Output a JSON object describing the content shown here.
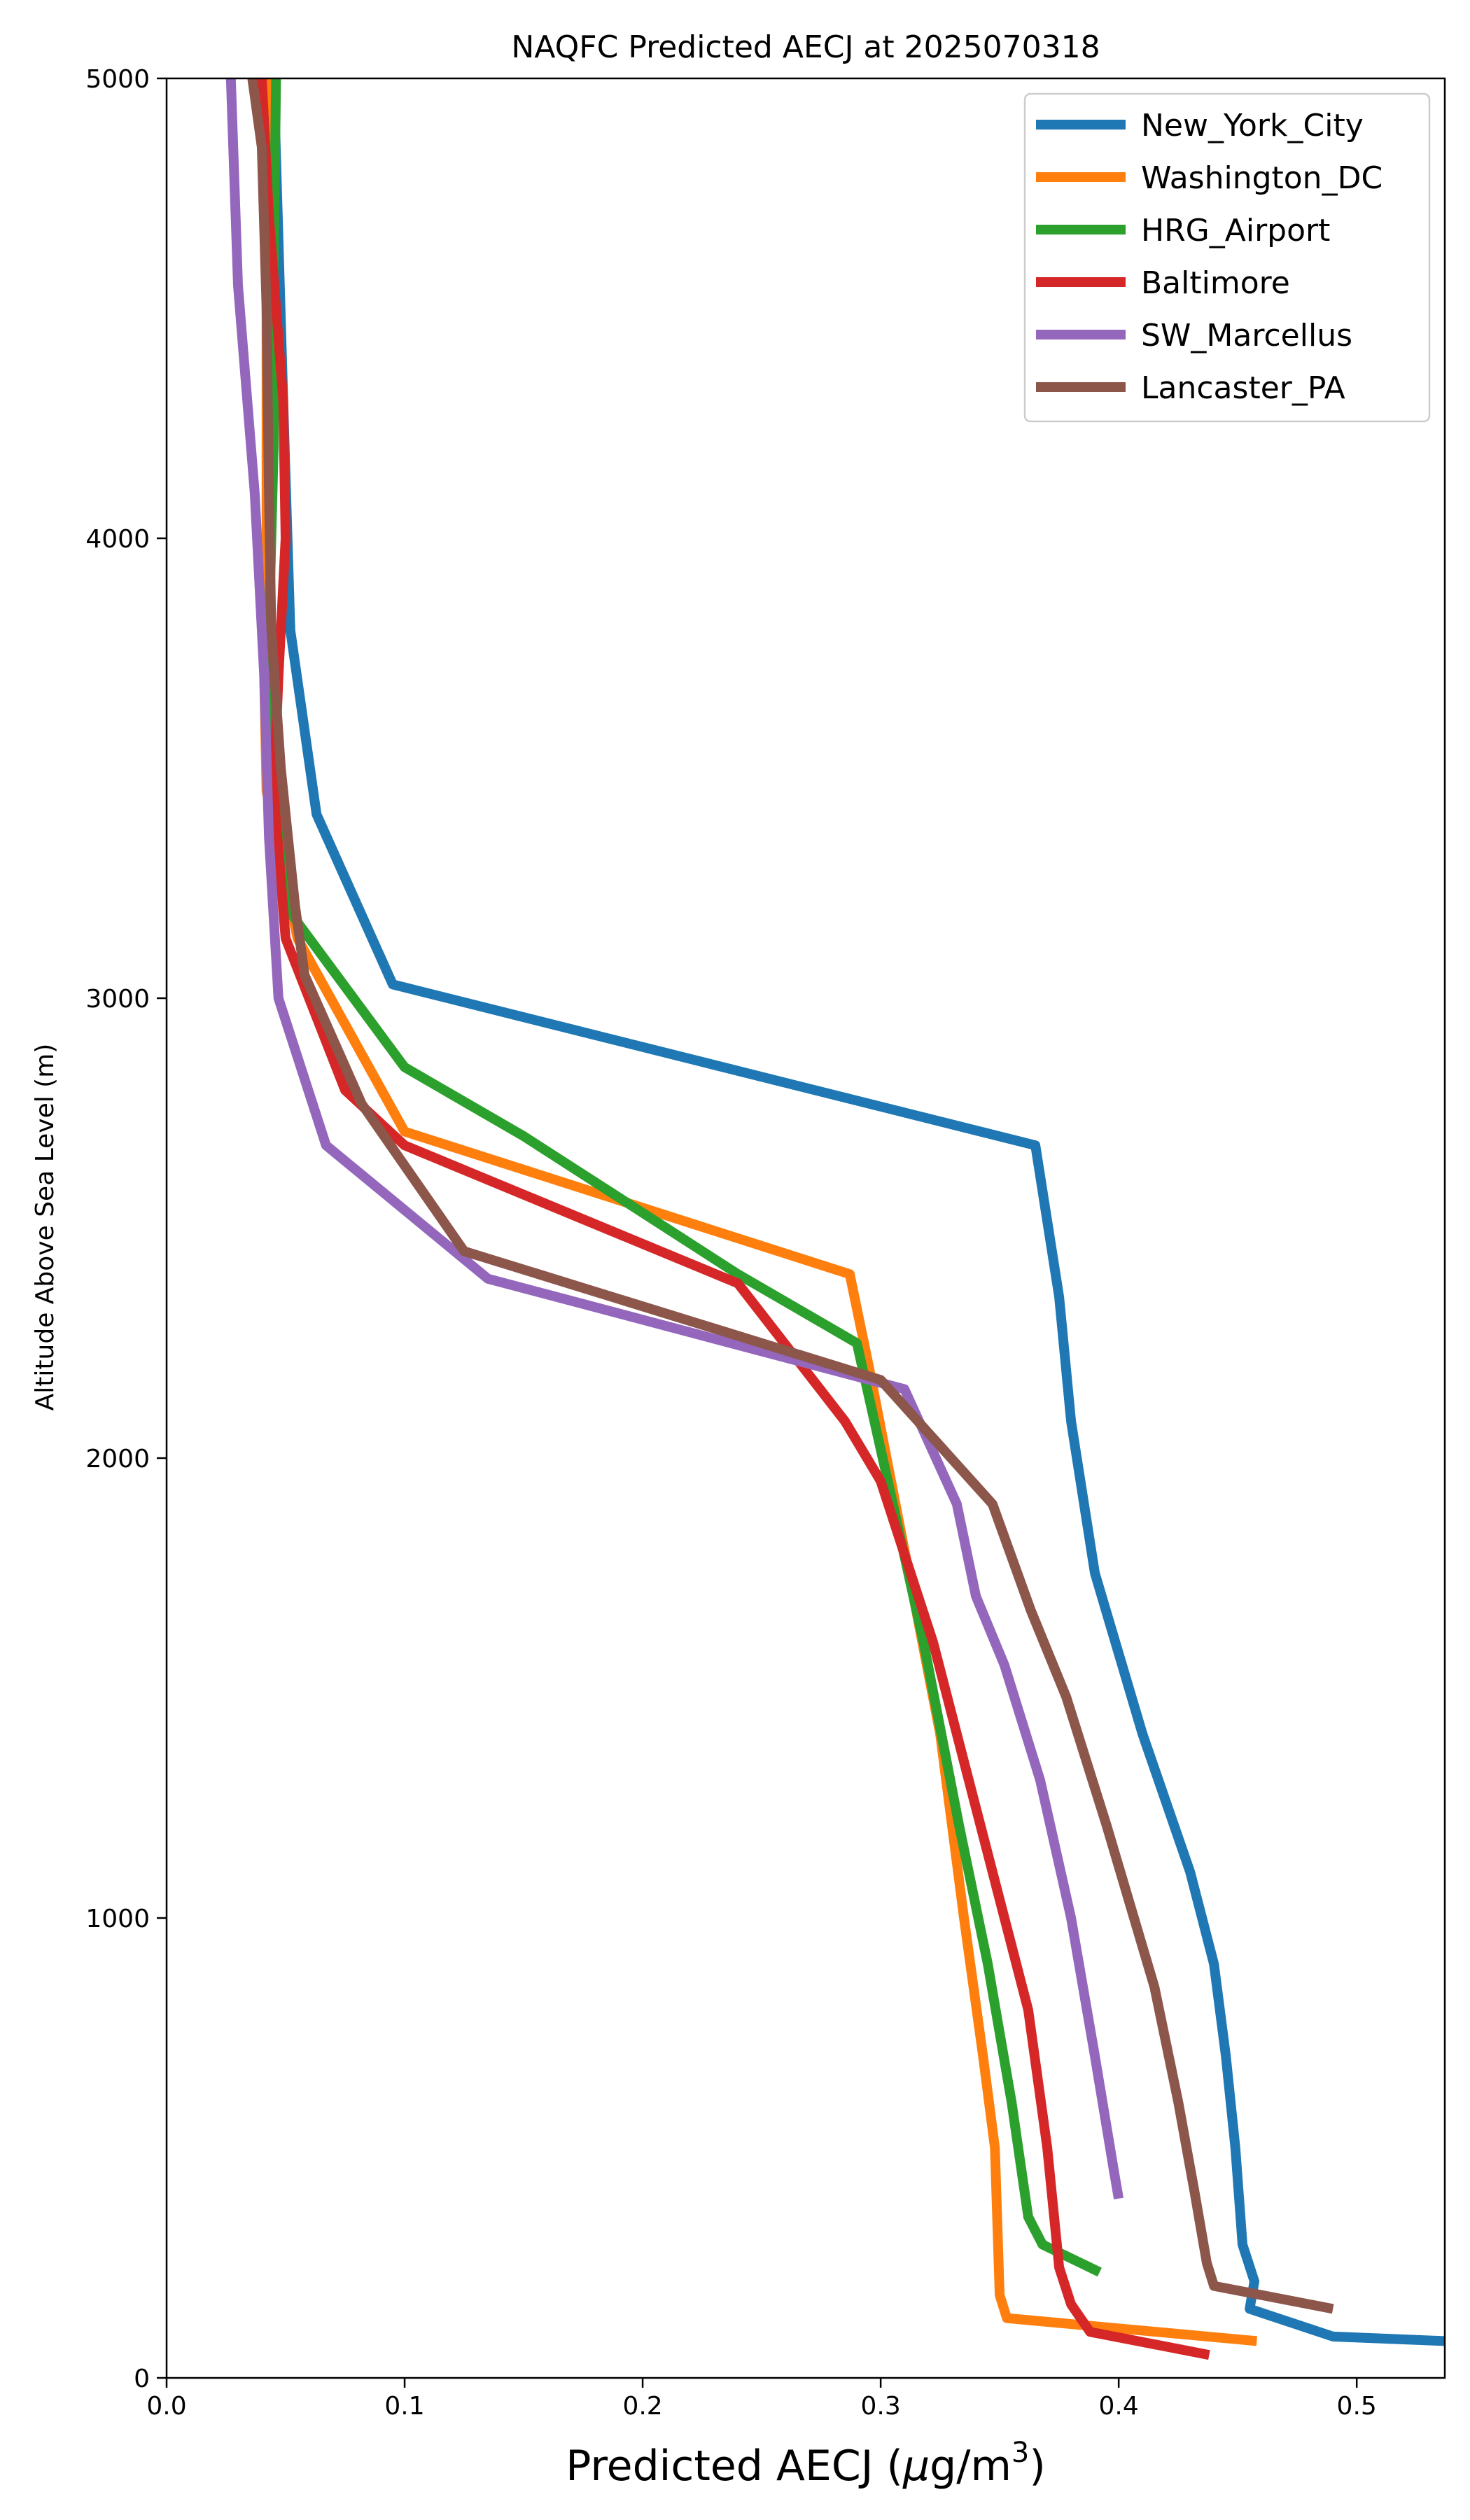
{
  "chart_data": {
    "type": "line",
    "title": "NAQFC Predicted AECJ at 2025070318",
    "xlabel": "Predicted AECJ (μg/m³)",
    "xlabel_parts": {
      "text": "Predicted AECJ (",
      "mu": "μ",
      "unit": "g/m",
      "sup": "3",
      "close": ")"
    },
    "ylabel": "Altitude Above Sea Level (m)",
    "xlim": [
      0.0,
      0.537
    ],
    "ylim": [
      0,
      5000
    ],
    "xticks": [
      "0.0",
      "0.1",
      "0.2",
      "0.3",
      "0.4",
      "0.5"
    ],
    "yticks": [
      "0",
      "1000",
      "2000",
      "3000",
      "4000",
      "5000"
    ],
    "grid": false,
    "legend_position": "top-right",
    "series": [
      {
        "name": "New_York_City",
        "color": "#1f77b4",
        "points": [
          [
            0.537,
            80
          ],
          [
            0.49,
            90
          ],
          [
            0.455,
            150
          ],
          [
            0.457,
            210
          ],
          [
            0.452,
            290
          ],
          [
            0.449,
            500
          ],
          [
            0.445,
            700
          ],
          [
            0.44,
            900
          ],
          [
            0.43,
            1100
          ],
          [
            0.41,
            1400
          ],
          [
            0.39,
            1750
          ],
          [
            0.38,
            2080
          ],
          [
            0.375,
            2350
          ],
          [
            0.365,
            2680
          ],
          [
            0.095,
            3030
          ],
          [
            0.063,
            3400
          ],
          [
            0.052,
            3800
          ],
          [
            0.049,
            4300
          ],
          [
            0.045,
            5000
          ]
        ]
      },
      {
        "name": "Washington_DC",
        "color": "#ff7f0e",
        "points": [
          [
            0.458,
            80
          ],
          [
            0.353,
            130
          ],
          [
            0.35,
            180
          ],
          [
            0.348,
            500
          ],
          [
            0.343,
            700
          ],
          [
            0.335,
            1000
          ],
          [
            0.325,
            1400
          ],
          [
            0.31,
            1800
          ],
          [
            0.295,
            2200
          ],
          [
            0.287,
            2400
          ],
          [
            0.1,
            2710
          ],
          [
            0.055,
            3130
          ],
          [
            0.042,
            3450
          ],
          [
            0.041,
            3700
          ],
          [
            0.042,
            4000
          ],
          [
            0.042,
            4500
          ],
          [
            0.043,
            5000
          ]
        ]
      },
      {
        "name": "HRG_Airport",
        "color": "#2ca02c",
        "points": [
          [
            0.392,
            230
          ],
          [
            0.368,
            290
          ],
          [
            0.362,
            350
          ],
          [
            0.355,
            600
          ],
          [
            0.345,
            900
          ],
          [
            0.333,
            1200
          ],
          [
            0.318,
            1600
          ],
          [
            0.303,
            1950
          ],
          [
            0.29,
            2250
          ],
          [
            0.24,
            2400
          ],
          [
            0.15,
            2700
          ],
          [
            0.1,
            2850
          ],
          [
            0.05,
            3200
          ],
          [
            0.044,
            3500
          ],
          [
            0.043,
            3800
          ],
          [
            0.045,
            4200
          ],
          [
            0.045,
            4600
          ],
          [
            0.046,
            5000
          ]
        ]
      },
      {
        "name": "Baltimore",
        "color": "#d62728",
        "points": [
          [
            0.438,
            50
          ],
          [
            0.388,
            100
          ],
          [
            0.38,
            160
          ],
          [
            0.375,
            240
          ],
          [
            0.37,
            500
          ],
          [
            0.362,
            800
          ],
          [
            0.352,
            1000
          ],
          [
            0.337,
            1300
          ],
          [
            0.322,
            1600
          ],
          [
            0.3,
            1950
          ],
          [
            0.285,
            2080
          ],
          [
            0.24,
            2380
          ],
          [
            0.1,
            2680
          ],
          [
            0.075,
            2800
          ],
          [
            0.05,
            3130
          ],
          [
            0.045,
            3450
          ],
          [
            0.047,
            3700
          ],
          [
            0.05,
            4000
          ],
          [
            0.049,
            4300
          ],
          [
            0.043,
            4700
          ],
          [
            0.04,
            5000
          ]
        ]
      },
      {
        "name": "SW_Marcellus",
        "color": "#9467bd",
        "points": [
          [
            0.4,
            390
          ],
          [
            0.398,
            450
          ],
          [
            0.39,
            700
          ],
          [
            0.38,
            1000
          ],
          [
            0.367,
            1300
          ],
          [
            0.352,
            1550
          ],
          [
            0.34,
            1700
          ],
          [
            0.332,
            1900
          ],
          [
            0.31,
            2150
          ],
          [
            0.135,
            2390
          ],
          [
            0.067,
            2680
          ],
          [
            0.047,
            3000
          ],
          [
            0.043,
            3350
          ],
          [
            0.041,
            3700
          ],
          [
            0.037,
            4100
          ],
          [
            0.03,
            4550
          ],
          [
            0.027,
            5000
          ]
        ]
      },
      {
        "name": "Lancaster_PA",
        "color": "#8c564b",
        "points": [
          [
            0.49,
            150
          ],
          [
            0.44,
            200
          ],
          [
            0.437,
            250
          ],
          [
            0.432,
            400
          ],
          [
            0.425,
            600
          ],
          [
            0.415,
            850
          ],
          [
            0.395,
            1200
          ],
          [
            0.378,
            1480
          ],
          [
            0.363,
            1670
          ],
          [
            0.347,
            1900
          ],
          [
            0.3,
            2170
          ],
          [
            0.125,
            2450
          ],
          [
            0.082,
            2770
          ],
          [
            0.058,
            3050
          ],
          [
            0.054,
            3200
          ],
          [
            0.048,
            3500
          ],
          [
            0.044,
            3800
          ],
          [
            0.043,
            4100
          ],
          [
            0.042,
            4500
          ],
          [
            0.04,
            4850
          ],
          [
            0.036,
            5000
          ]
        ]
      }
    ]
  }
}
